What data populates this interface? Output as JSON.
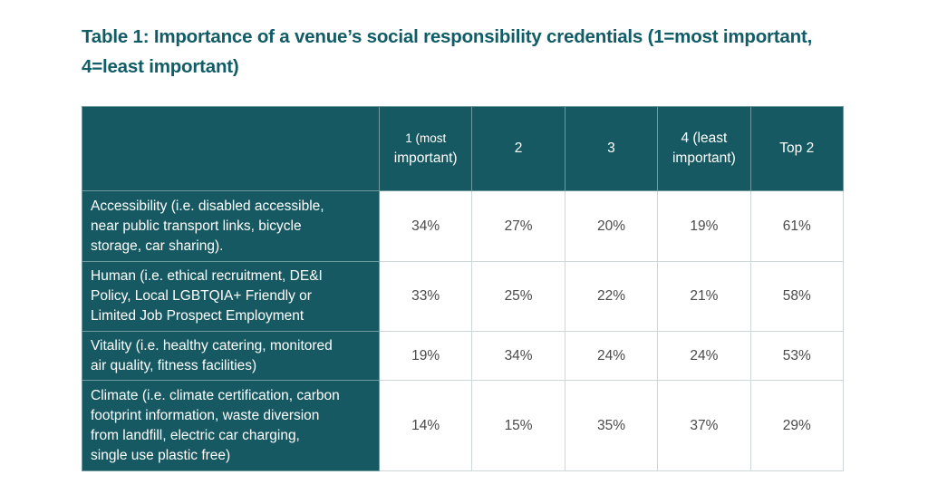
{
  "title_line1": "Table 1: Importance of a venue’s social responsibility credentials (1=most important,",
  "title_line2": "4=least important)",
  "table": {
    "headers": [
      {
        "line1": "1 (most",
        "line2": "important)"
      },
      {
        "line1": "2",
        "line2": ""
      },
      {
        "line1": "3",
        "line2": ""
      },
      {
        "line1": "4 (least",
        "line2": "important)"
      },
      {
        "line1": "Top 2",
        "line2": ""
      }
    ],
    "rows": [
      {
        "label_lines": [
          "Accessibility (i.e. disabled accessible,",
          "near public transport links, bicycle",
          "storage, car sharing)."
        ],
        "values": [
          "34%",
          "27%",
          "20%",
          "19%",
          "61%"
        ]
      },
      {
        "label_lines": [
          "Human (i.e. ethical recruitment, DE&I",
          "Policy, Local LGBTQIA+ Friendly or",
          "Limited Job Prospect Employment"
        ],
        "values": [
          "33%",
          "25%",
          "22%",
          "21%",
          "58%"
        ]
      },
      {
        "label_lines": [
          "Vitality (i.e. healthy catering, monitored",
          "air quality, fitness facilities)"
        ],
        "values": [
          "19%",
          "34%",
          "24%",
          "24%",
          "53%"
        ]
      },
      {
        "label_lines": [
          "Climate (i.e. climate certification, carbon",
          "footprint information, waste diversion",
          "from landfill, electric car charging,",
          "single use plastic free)"
        ],
        "values": [
          "14%",
          "15%",
          "35%",
          "37%",
          "29%"
        ]
      }
    ]
  }
}
